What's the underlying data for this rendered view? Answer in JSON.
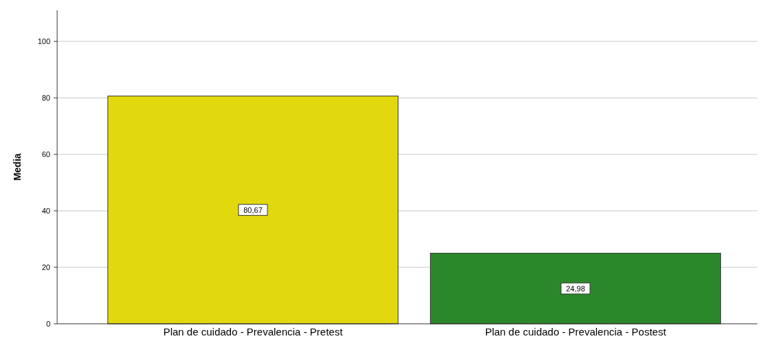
{
  "chart_data": {
    "type": "bar",
    "ylabel": "Media",
    "categories": [
      "Plan de cuidado - Prevalencia - Pretest",
      "Plan de cuidado - Prevalencia - Postest"
    ],
    "values": [
      80.67,
      24.98
    ],
    "colors": [
      "#e2d80e",
      "#2a882a"
    ],
    "value_labels": [
      "80,67",
      "24,98"
    ],
    "ylim": [
      0,
      111
    ],
    "yticks": [
      0,
      20,
      40,
      60,
      80,
      100
    ],
    "grid": "y"
  }
}
